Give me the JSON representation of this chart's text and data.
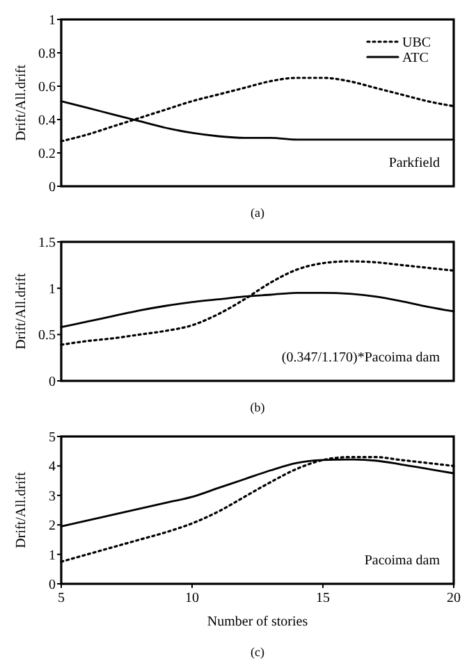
{
  "chart_data": [
    {
      "type": "line",
      "ylabel": "Drift/All.drift",
      "x": [
        5,
        6,
        7,
        8,
        9,
        10,
        11,
        12,
        13,
        14,
        15,
        16,
        17,
        18,
        19,
        20
      ],
      "xlim": [
        5,
        20
      ],
      "ylim": [
        0,
        1
      ],
      "yticks": [
        0,
        0.2,
        0.4,
        0.6,
        0.8,
        1
      ],
      "tick_labels": "y",
      "legend": "top right",
      "grid": false,
      "annotations": [
        "Parkfield",
        "(a)"
      ],
      "series": [
        {
          "name": "UBC",
          "color": "#000000",
          "line_style": "dotted",
          "values": [
            0.27,
            0.31,
            0.36,
            0.41,
            0.46,
            0.51,
            0.55,
            0.59,
            0.63,
            0.65,
            0.65,
            0.63,
            0.59,
            0.55,
            0.51,
            0.48
          ]
        },
        {
          "name": "ATC",
          "color": "#000000",
          "line_style": "solid",
          "values": [
            0.51,
            0.47,
            0.43,
            0.39,
            0.35,
            0.32,
            0.3,
            0.29,
            0.29,
            0.28,
            0.28,
            0.28,
            0.28,
            0.28,
            0.28,
            0.28
          ]
        }
      ]
    },
    {
      "type": "line",
      "ylabel": "Drift/All.drift",
      "x": [
        5,
        6,
        7,
        8,
        9,
        10,
        11,
        12,
        13,
        14,
        15,
        16,
        17,
        18,
        19,
        20
      ],
      "xlim": [
        5,
        20
      ],
      "ylim": [
        0,
        1.5
      ],
      "yticks": [
        0,
        0.5,
        1,
        1.5
      ],
      "tick_labels": "y",
      "legend": false,
      "grid": false,
      "annotations": [
        "(0.347/1.170)*Pacoima dam",
        "(b)"
      ],
      "series": [
        {
          "color": "#000000",
          "line_style": "dotted",
          "values": [
            0.39,
            0.43,
            0.46,
            0.5,
            0.54,
            0.6,
            0.72,
            0.88,
            1.06,
            1.2,
            1.27,
            1.29,
            1.28,
            1.25,
            1.22,
            1.19
          ]
        },
        {
          "color": "#000000",
          "line_style": "solid",
          "values": [
            0.58,
            0.64,
            0.7,
            0.76,
            0.81,
            0.85,
            0.88,
            0.91,
            0.93,
            0.95,
            0.95,
            0.94,
            0.91,
            0.86,
            0.8,
            0.75
          ]
        }
      ]
    },
    {
      "type": "line",
      "ylabel": "Drift/All.drift",
      "xlabel": "Number of stories",
      "x": [
        5,
        6,
        7,
        8,
        9,
        10,
        11,
        12,
        13,
        14,
        15,
        16,
        17,
        18,
        19,
        20
      ],
      "xlim": [
        5,
        20
      ],
      "xticks": [
        5,
        10,
        15,
        20
      ],
      "ylim": [
        0,
        5
      ],
      "yticks": [
        0,
        1,
        2,
        3,
        4,
        5
      ],
      "legend": false,
      "grid": false,
      "annotations": [
        "Pacoima dam",
        "(c)"
      ],
      "series": [
        {
          "color": "#000000",
          "line_style": "dotted",
          "values": [
            0.75,
            1.0,
            1.25,
            1.5,
            1.75,
            2.05,
            2.45,
            2.95,
            3.45,
            3.9,
            4.2,
            4.3,
            4.3,
            4.2,
            4.1,
            4.0
          ]
        },
        {
          "color": "#000000",
          "line_style": "solid",
          "values": [
            1.95,
            2.15,
            2.35,
            2.55,
            2.75,
            2.95,
            3.25,
            3.55,
            3.85,
            4.1,
            4.2,
            4.22,
            4.18,
            4.05,
            3.9,
            3.75
          ]
        }
      ]
    }
  ]
}
